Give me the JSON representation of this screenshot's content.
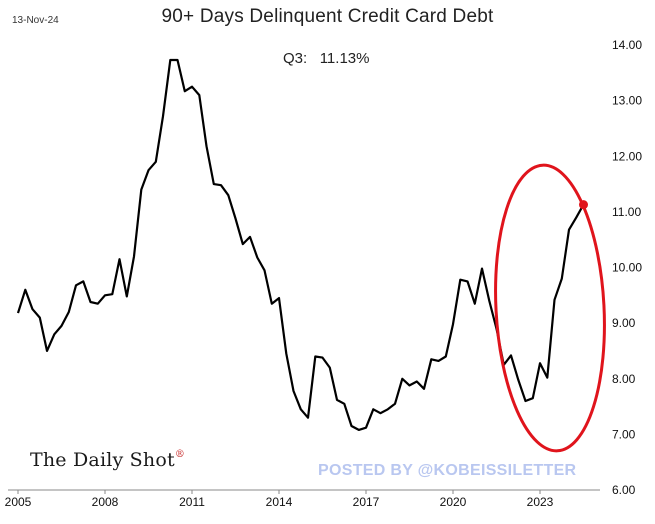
{
  "header": {
    "date": "13-Nov-24",
    "title": "90+ Days Delinquent Credit Card Debt",
    "annotation_label": "Q3:",
    "annotation_value": "11.13%"
  },
  "branding": {
    "source": "The Daily Shot",
    "source_mark": "®",
    "watermark": "POSTED BY @KOBEISSILETTER"
  },
  "colors": {
    "line": "#000000",
    "highlight_ellipse": "#e0141c",
    "last_point": "#e0141c",
    "watermark": "#b9c7f0"
  },
  "chart_data": {
    "type": "line",
    "title": "90+ Days Delinquent Credit Card Debt",
    "xlabel": "",
    "ylabel": "",
    "x_ticks": [
      "2005",
      "2008",
      "2011",
      "2014",
      "2017",
      "2020",
      "2023"
    ],
    "y_ticks": [
      "14.00",
      "13.00",
      "12.00",
      "11.00",
      "10.00",
      "9.00",
      "8.00",
      "7.00",
      "6.00"
    ],
    "xlim": [
      2005.0,
      2025.0
    ],
    "ylim": [
      6.0,
      14.0
    ],
    "y_axis_side": "right",
    "grid": false,
    "series": [
      {
        "x": [
          2005.0,
          2005.25,
          2005.5,
          2005.75,
          2006.0,
          2006.25,
          2006.5,
          2006.75,
          2007.0,
          2007.25,
          2007.5,
          2007.75,
          2008.0,
          2008.25,
          2008.5,
          2008.75,
          2009.0,
          2009.25,
          2009.5,
          2009.75,
          2010.0,
          2010.25,
          2010.5,
          2010.75,
          2011.0,
          2011.25,
          2011.5,
          2011.75,
          2012.0,
          2012.25,
          2012.5,
          2012.75,
          2013.0,
          2013.25,
          2013.5,
          2013.75,
          2014.0,
          2014.25,
          2014.5,
          2014.75,
          2015.0,
          2015.25,
          2015.5,
          2015.75,
          2016.0,
          2016.25,
          2016.5,
          2016.75,
          2017.0,
          2017.25,
          2017.5,
          2017.75,
          2018.0,
          2018.25,
          2018.5,
          2018.75,
          2019.0,
          2019.25,
          2019.5,
          2019.75,
          2020.0,
          2020.25,
          2020.5,
          2020.75,
          2021.0,
          2021.25,
          2021.5,
          2021.75,
          2022.0,
          2022.25,
          2022.5,
          2022.75,
          2023.0,
          2023.25,
          2023.5,
          2023.75,
          2024.0,
          2024.25,
          2024.5
        ],
        "values": [
          9.18,
          9.6,
          9.25,
          9.1,
          8.5,
          8.8,
          8.95,
          9.2,
          9.68,
          9.75,
          9.38,
          9.35,
          9.5,
          9.52,
          10.15,
          9.48,
          10.2,
          11.4,
          11.75,
          11.9,
          12.72,
          13.73,
          13.73,
          13.17,
          13.25,
          13.1,
          12.18,
          11.5,
          11.48,
          11.3,
          10.88,
          10.42,
          10.55,
          10.18,
          9.95,
          9.35,
          9.45,
          8.45,
          7.78,
          7.45,
          7.3,
          8.4,
          8.38,
          8.2,
          7.62,
          7.55,
          7.15,
          7.08,
          7.12,
          7.45,
          7.38,
          7.45,
          7.55,
          8.0,
          7.88,
          7.95,
          7.82,
          8.35,
          8.32,
          8.4,
          8.98,
          9.78,
          9.75,
          9.35,
          9.98,
          9.4,
          8.9,
          8.25,
          8.42,
          7.98,
          7.6,
          7.65,
          8.28,
          8.02,
          9.42,
          9.8,
          10.68,
          10.9,
          11.13
        ]
      }
    ],
    "highlighted_point": {
      "x": 2024.5,
      "y": 11.13
    }
  }
}
